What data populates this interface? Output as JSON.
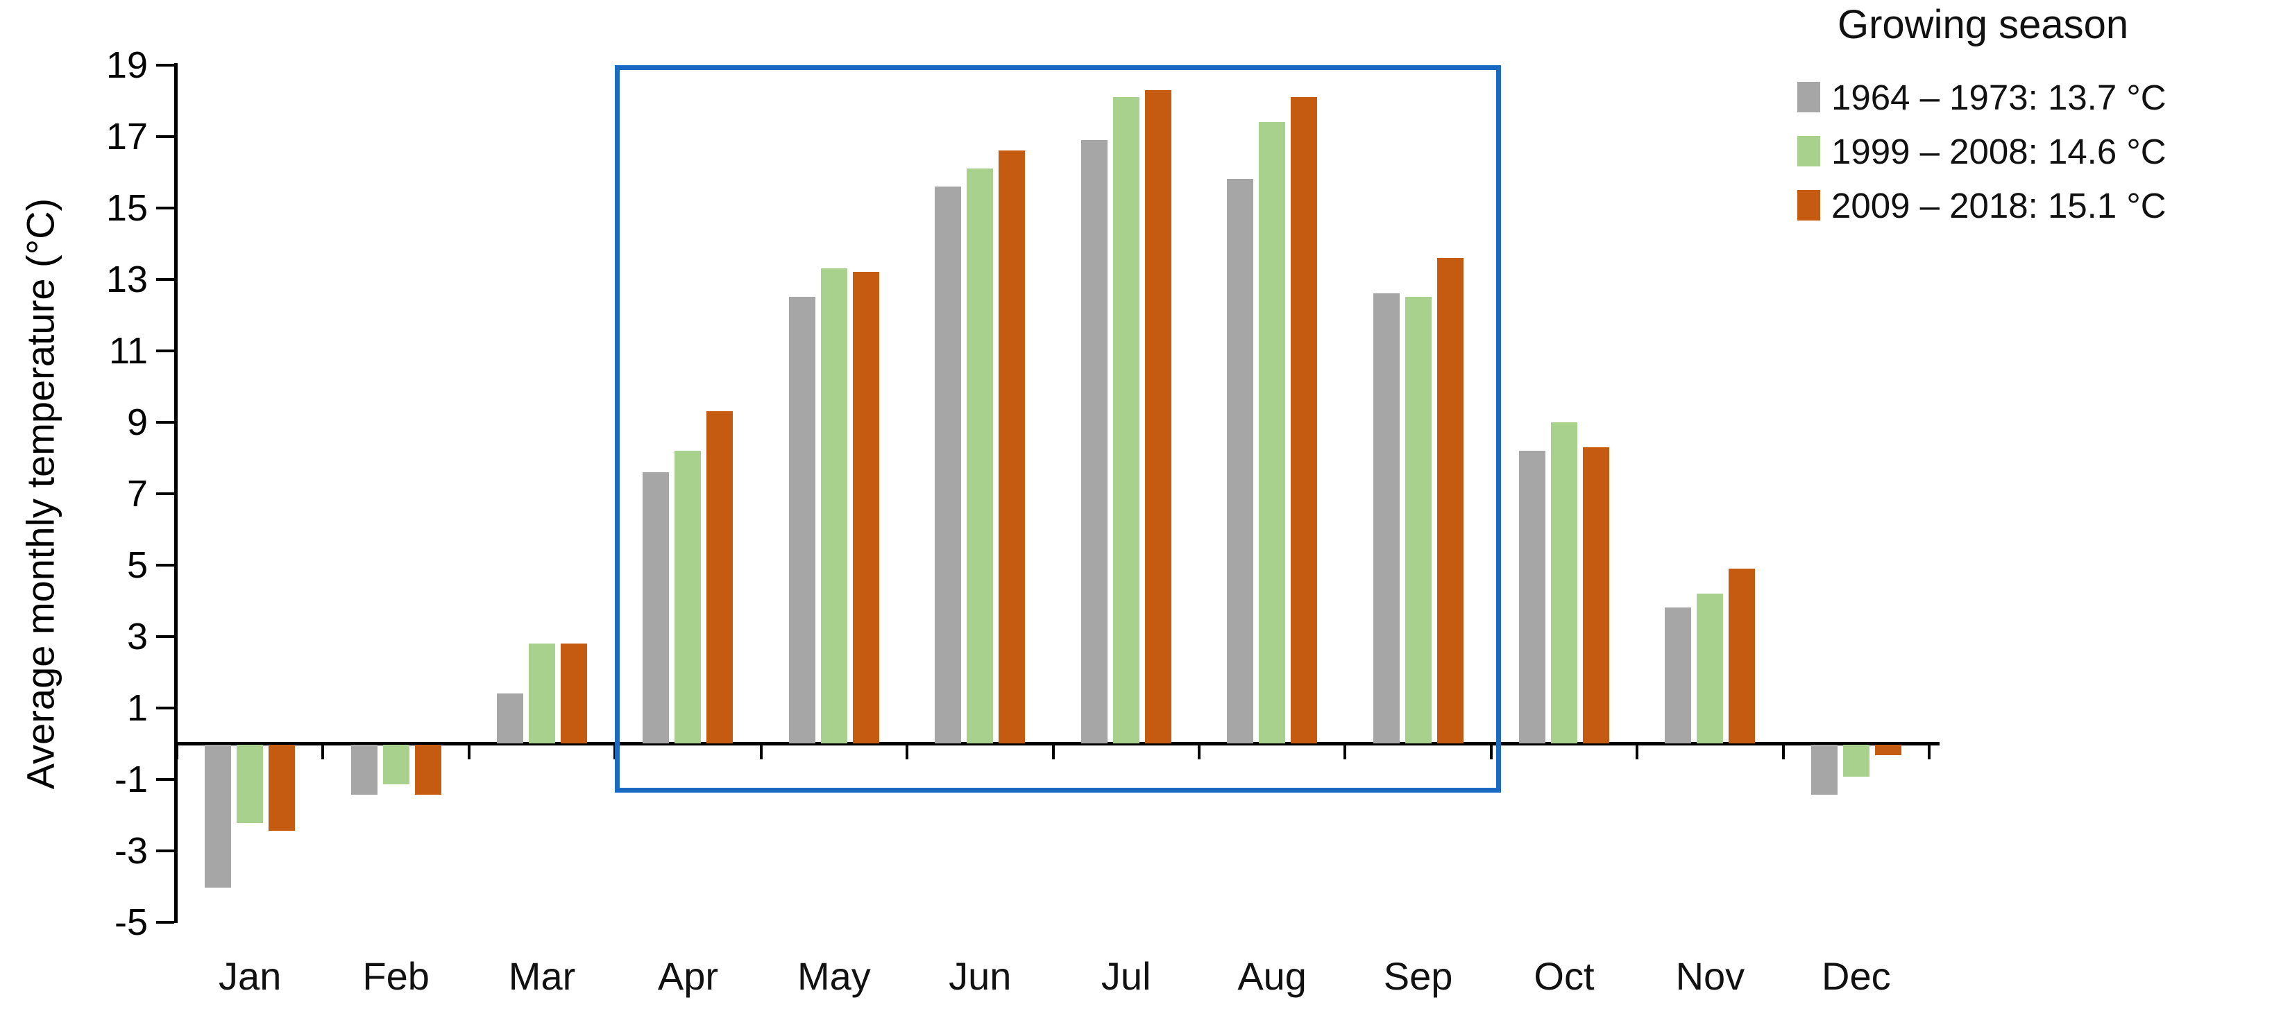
{
  "chart_data": {
    "type": "bar",
    "categories": [
      "Jan",
      "Feb",
      "Mar",
      "Apr",
      "May",
      "Jun",
      "Jul",
      "Aug",
      "Sep",
      "Oct",
      "Nov",
      "Dec"
    ],
    "series": [
      {
        "name": "1964 – 1973: 13.7 °C",
        "period": "1964 – 1973",
        "season_mean_c": 13.7,
        "color": "#a6a6a6",
        "values": [
          -4.0,
          -1.4,
          1.4,
          7.6,
          12.5,
          15.6,
          16.9,
          15.8,
          12.6,
          8.2,
          3.8,
          -1.4
        ]
      },
      {
        "name": "1999 – 2008: 14.6 °C",
        "period": "1999 – 2008",
        "season_mean_c": 14.6,
        "color": "#a9d18e",
        "values": [
          -2.2,
          -1.1,
          2.8,
          8.2,
          13.3,
          16.1,
          18.1,
          17.4,
          12.5,
          9.0,
          4.2,
          -0.9
        ]
      },
      {
        "name": "2009 – 2018: 15.1 °C",
        "period": "2009 – 2018",
        "season_mean_c": 15.1,
        "color": "#c55a11",
        "values": [
          -2.4,
          -1.4,
          2.8,
          9.3,
          13.2,
          16.6,
          18.3,
          18.1,
          13.6,
          8.3,
          4.9,
          -0.3
        ]
      }
    ],
    "ylabel": "Average monthly temperature (°C)",
    "ylim": [
      -5,
      19
    ],
    "yticks": [
      19,
      17,
      15,
      13,
      11,
      9,
      7,
      5,
      3,
      1,
      -1,
      -3,
      -5
    ],
    "grid": false,
    "legend_title": "Growing season",
    "legend_position": "top-right",
    "highlight_box": {
      "from_month": "Apr",
      "to_month": "Sep",
      "y_top": 19,
      "y_bottom": -1.1,
      "color": "#1b6ac2"
    }
  }
}
